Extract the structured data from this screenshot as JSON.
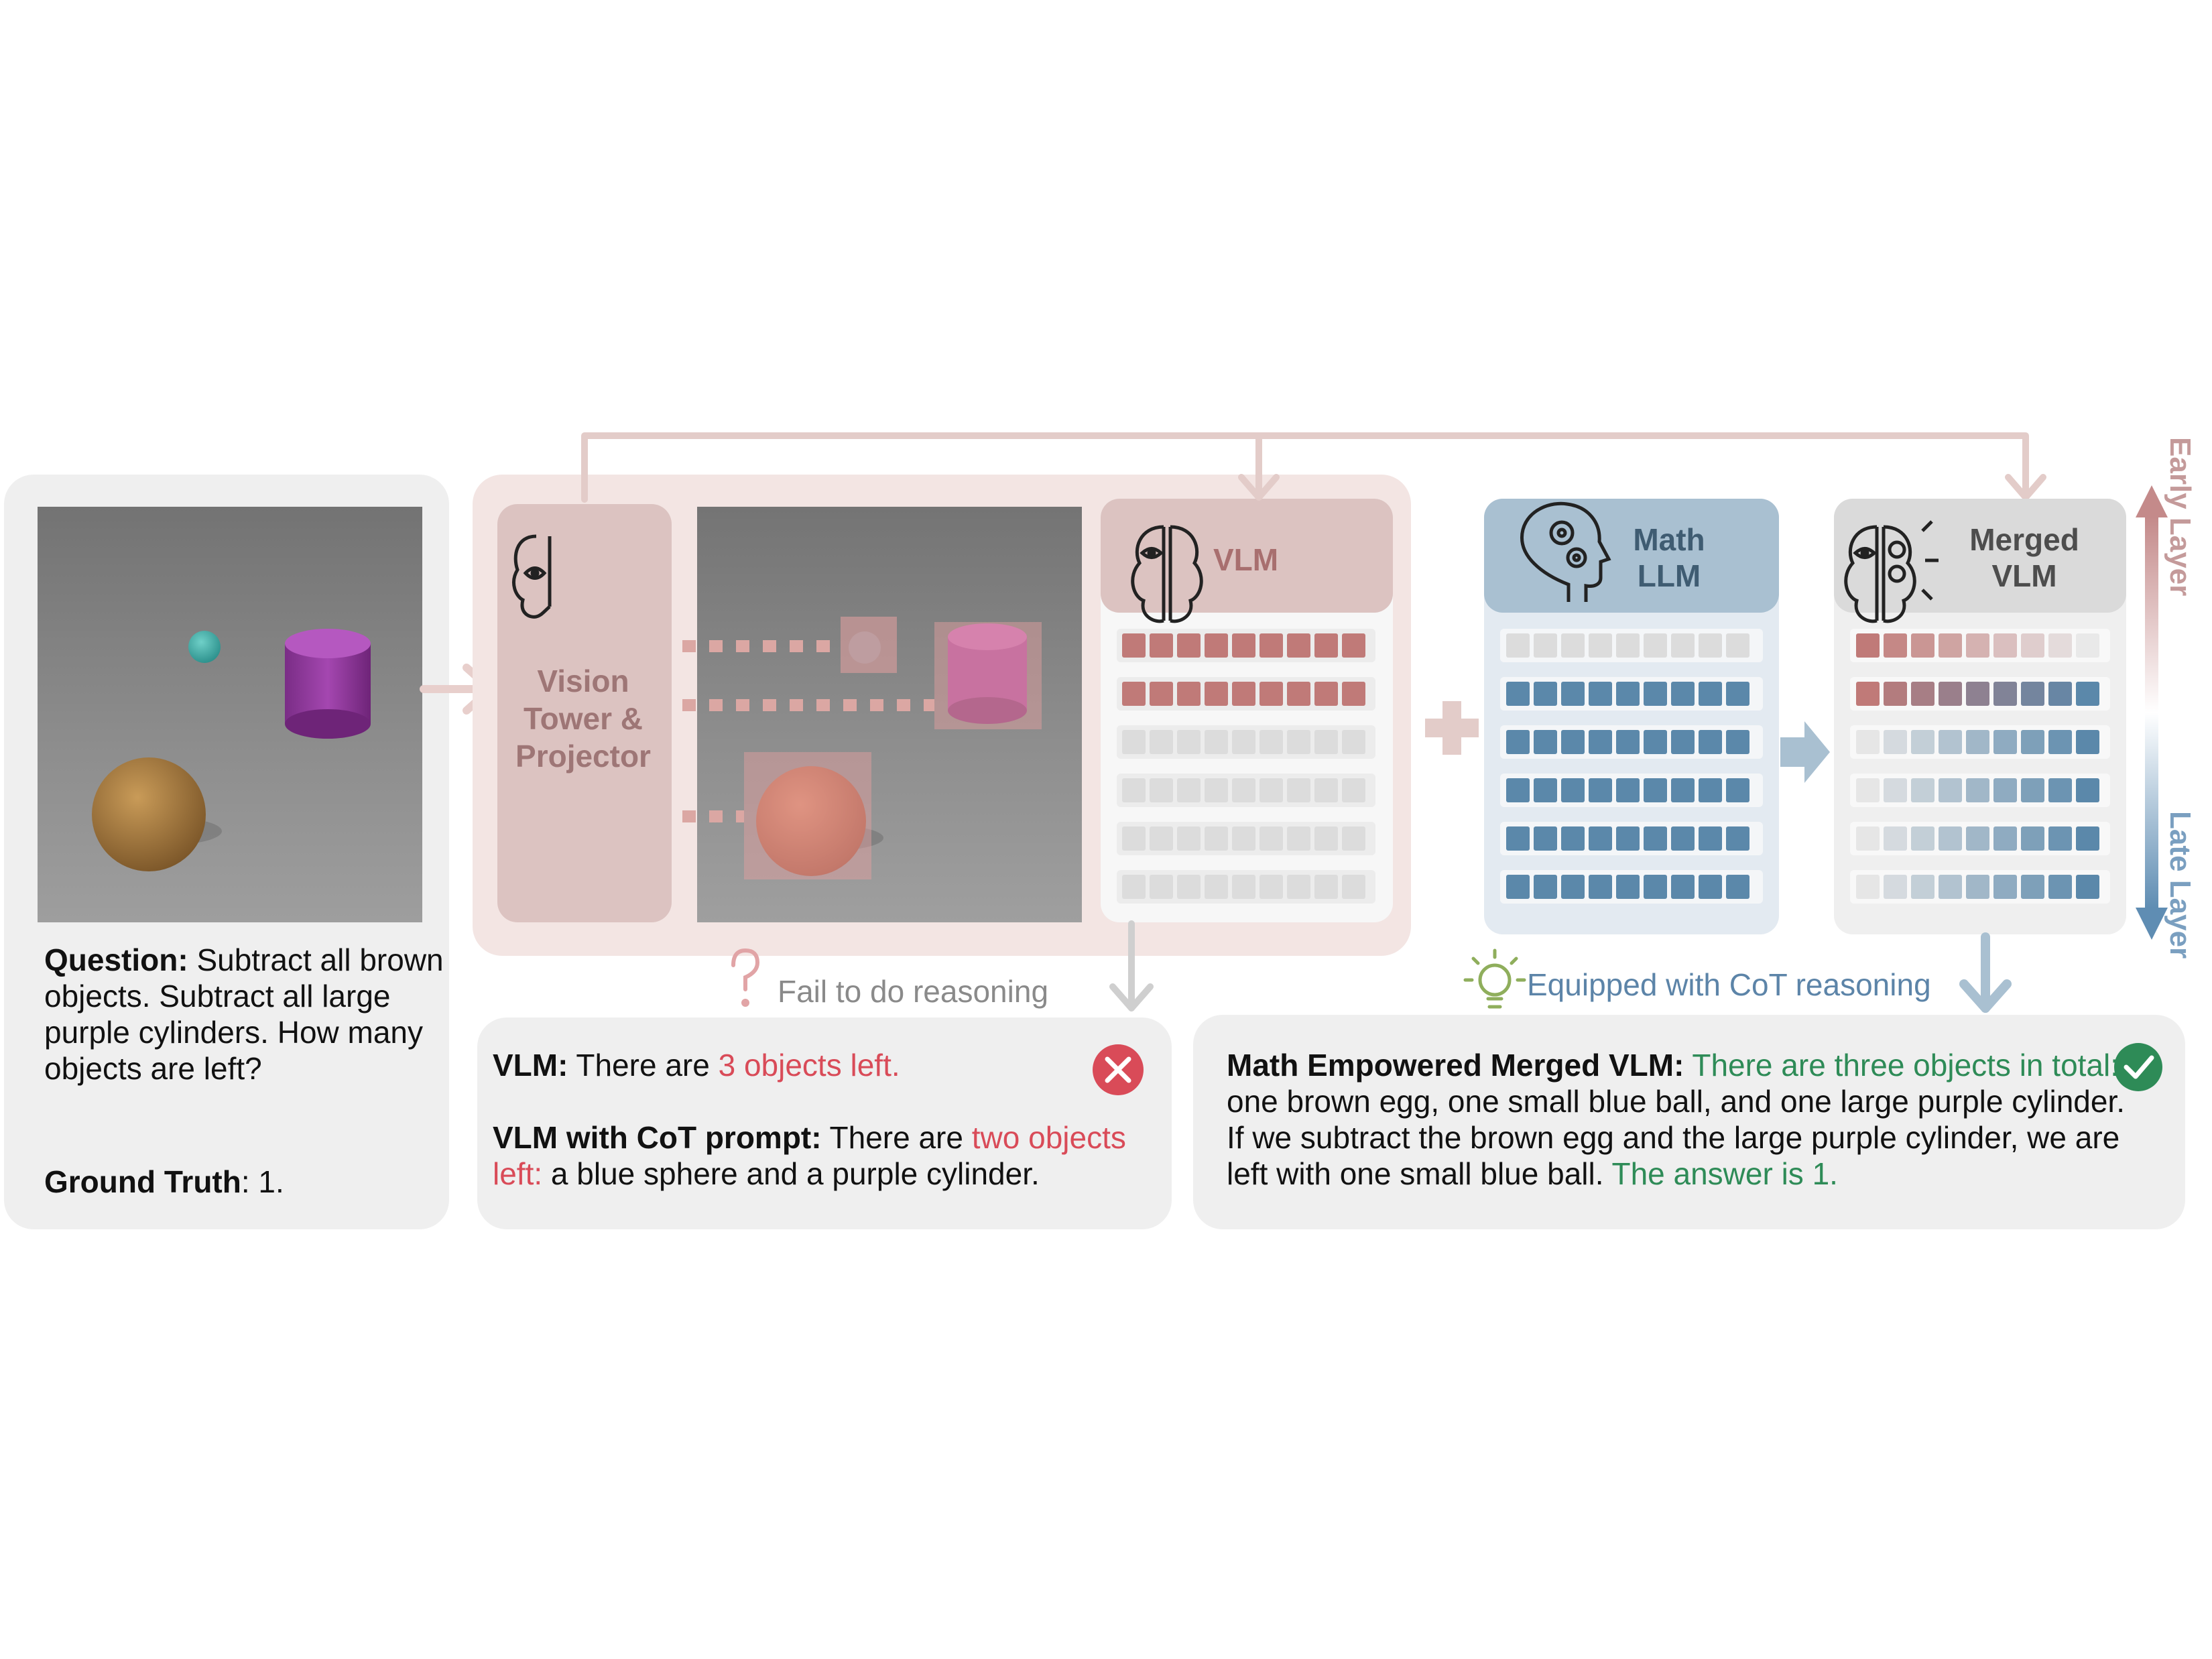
{
  "question": {
    "label": "Question:",
    "text": " Subtract all brown objects. Subtract all large purple cylinders. How many objects are left?"
  },
  "ground_truth": {
    "label": "Ground Truth",
    "value": ": 1."
  },
  "vision_tower": {
    "line1": "Vision",
    "line2": "Tower &",
    "line3": "Projector"
  },
  "vlm": {
    "title": "VLM"
  },
  "math_llm": {
    "line1": "Math",
    "line2": "LLM"
  },
  "merged_vlm": {
    "line1": "Merged",
    "line2": "VLM"
  },
  "fail_label": {
    "icon": "?",
    "text": "Fail to do reasoning"
  },
  "cot_label": {
    "text": "Equipped with CoT reasoning"
  },
  "vlm_answer": {
    "label": "VLM:",
    "text": " There are ",
    "wrong": "3 objects left."
  },
  "vlm_cot_answer": {
    "label": "VLM with CoT prompt:",
    "text": " There are ",
    "wrong": "two objects left:",
    "rest": " a blue sphere and a purple cylinder."
  },
  "merged_answer": {
    "label": "Math Empowered Merged VLM:",
    "green1": " There are three objects in total:",
    "text": " one brown egg, one small blue ball, and one large purple cylinder. If we subtract the brown egg and the large purple cylinder, we are left with one small blue ball.",
    "green2": " The answer is 1."
  },
  "layers": {
    "early": "Early Layer",
    "late": "Late Layer"
  },
  "colors": {
    "vlm_red": "#c07a78",
    "math_blue": "#5b88aa",
    "gray_cell": "#dcdcdc",
    "wrong_red": "#d94b58",
    "right_green": "#2e8b57",
    "panel_pink": "#f2e3e1",
    "panel_gray": "#f0f0f0"
  },
  "icons": [
    "brain-eye-icon",
    "head-gears-icon",
    "brain-eye-gears-icon",
    "lightbulb-icon",
    "question-mark-icon",
    "cross-icon",
    "check-icon"
  ]
}
